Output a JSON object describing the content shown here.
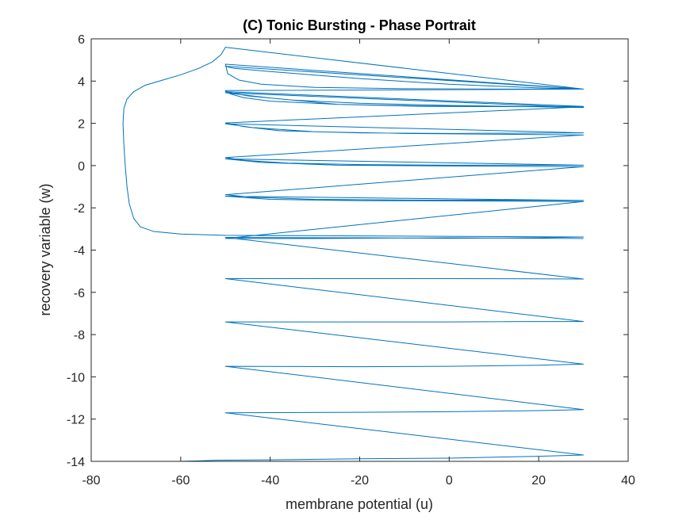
{
  "chart_data": {
    "type": "line",
    "title": "(C) Tonic Bursting - Phase Portrait",
    "xlabel": "membrane potential (u)",
    "ylabel": "recovery variable (w)",
    "xlim": [
      -80,
      40
    ],
    "ylim": [
      -14,
      6
    ],
    "xticks": [
      -80,
      -60,
      -40,
      -20,
      0,
      20,
      40
    ],
    "yticks": [
      -14,
      -12,
      -10,
      -8,
      -6,
      -4,
      -2,
      0,
      2,
      4,
      6
    ],
    "grid": false,
    "box": true,
    "colors": {
      "line": "#0072BD",
      "axes": "#262626",
      "background": "#ffffff"
    },
    "series": [
      {
        "points": [
          [
            -70,
            -14.0
          ],
          [
            -60,
            -14.0
          ],
          [
            -52,
            -13.95
          ],
          [
            -40,
            -13.93
          ],
          [
            -20,
            -13.88
          ],
          [
            0,
            -13.85
          ],
          [
            20,
            -13.76
          ],
          [
            30,
            -13.7
          ],
          [
            -50,
            -11.7
          ],
          [
            -20,
            -11.68
          ],
          [
            0,
            -11.65
          ],
          [
            20,
            -11.6
          ],
          [
            30,
            -11.55
          ],
          [
            -50,
            -9.5
          ],
          [
            -20,
            -9.52
          ],
          [
            0,
            -9.5
          ],
          [
            20,
            -9.45
          ],
          [
            30,
            -9.4
          ],
          [
            -50,
            -7.4
          ],
          [
            -20,
            -7.4
          ],
          [
            0,
            -7.4
          ],
          [
            20,
            -7.38
          ],
          [
            30,
            -7.38
          ],
          [
            -50,
            -5.35
          ],
          [
            -20,
            -5.35
          ],
          [
            0,
            -5.35
          ],
          [
            20,
            -5.36
          ],
          [
            30,
            -5.37
          ],
          [
            -50,
            -3.4
          ],
          [
            -20,
            -3.42
          ],
          [
            0,
            -3.44
          ],
          [
            20,
            -3.42
          ],
          [
            30,
            -3.38
          ],
          [
            -50,
            -3.3
          ],
          [
            -60,
            -3.24
          ],
          [
            -66,
            -3.12
          ],
          [
            -69,
            -2.9
          ],
          [
            -70.5,
            -2.5
          ],
          [
            -71.5,
            -1.8
          ],
          [
            -72,
            -1.0
          ],
          [
            -72.4,
            0
          ],
          [
            -72.7,
            1.0
          ],
          [
            -72.9,
            2.0
          ],
          [
            -72.7,
            2.7
          ],
          [
            -72.0,
            3.15
          ],
          [
            -70.5,
            3.5
          ],
          [
            -68,
            3.8
          ],
          [
            -64,
            4.05
          ],
          [
            -60,
            4.3
          ],
          [
            -56,
            4.6
          ],
          [
            -53,
            4.9
          ],
          [
            -51,
            5.25
          ],
          [
            -50,
            5.6
          ],
          [
            30,
            3.62
          ],
          [
            -50,
            4.8
          ],
          [
            -49.5,
            4.35
          ],
          [
            -47,
            4.05
          ],
          [
            -42,
            3.85
          ],
          [
            -30,
            3.7
          ],
          [
            -10,
            3.64
          ],
          [
            10,
            3.62
          ],
          [
            30,
            3.62
          ],
          [
            -50,
            4.7
          ],
          [
            -48,
            4.6
          ],
          [
            -40,
            4.45
          ],
          [
            -20,
            4.12
          ],
          [
            0,
            3.85
          ],
          [
            20,
            3.68
          ],
          [
            30,
            3.62
          ],
          [
            -50,
            3.55
          ],
          [
            -49,
            3.4
          ],
          [
            -46,
            3.22
          ],
          [
            -40,
            3.05
          ],
          [
            -25,
            2.9
          ],
          [
            -5,
            2.82
          ],
          [
            15,
            2.8
          ],
          [
            30,
            2.8
          ],
          [
            -50,
            3.5
          ],
          [
            -45,
            3.3
          ],
          [
            -35,
            3.1
          ],
          [
            -20,
            2.95
          ],
          [
            0,
            2.85
          ],
          [
            30,
            2.75
          ],
          [
            -50,
            3.45
          ],
          [
            -40,
            3.2
          ],
          [
            -25,
            2.9
          ],
          [
            -5,
            2.8
          ],
          [
            30,
            2.78
          ],
          [
            -50,
            2.02
          ],
          [
            -46,
            1.85
          ],
          [
            -38,
            1.65
          ],
          [
            -20,
            1.55
          ],
          [
            0,
            1.52
          ],
          [
            30,
            1.55
          ],
          [
            -50,
            1.98
          ],
          [
            -44,
            1.8
          ],
          [
            -30,
            1.6
          ],
          [
            -10,
            1.52
          ],
          [
            30,
            1.45
          ],
          [
            -50,
            0.38
          ],
          [
            -46,
            0.25
          ],
          [
            -36,
            0.12
          ],
          [
            -20,
            0.05
          ],
          [
            0,
            0.02
          ],
          [
            30,
            0.02
          ],
          [
            -50,
            0.32
          ],
          [
            -42,
            0.15
          ],
          [
            -25,
            0.02
          ],
          [
            0,
            -0.02
          ],
          [
            30,
            -0.05
          ],
          [
            -50,
            -1.38
          ],
          [
            -44,
            -1.5
          ],
          [
            -30,
            -1.6
          ],
          [
            -10,
            -1.63
          ],
          [
            30,
            -1.65
          ],
          [
            -50,
            -1.45
          ],
          [
            -40,
            -1.6
          ],
          [
            -20,
            -1.66
          ],
          [
            0,
            -1.67
          ],
          [
            30,
            -1.7
          ],
          [
            -50,
            -3.45
          ],
          [
            -30,
            -3.45
          ],
          [
            0,
            -3.42
          ],
          [
            30,
            -3.45
          ]
        ]
      }
    ]
  }
}
